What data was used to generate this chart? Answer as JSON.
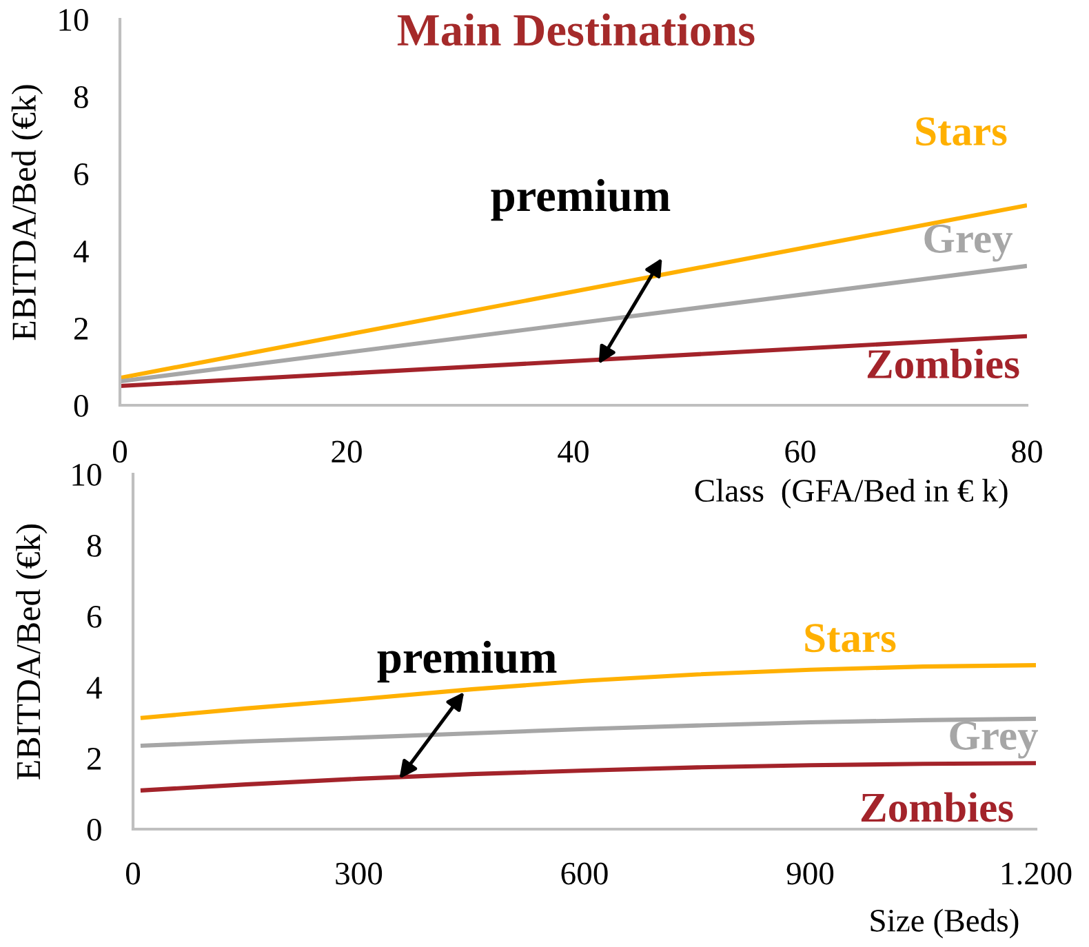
{
  "chart_data": [
    {
      "type": "line",
      "title": "Main Destinations",
      "xlabel": "Class  (GFA/Bed in € k)",
      "ylabel": "EBITDA/Bed (€k)",
      "x": [
        0,
        80
      ],
      "series": [
        {
          "name": "Stars",
          "color": "#ffb000",
          "values": [
            0.71,
            5.18
          ]
        },
        {
          "name": "Grey",
          "color": "#a6a6a6",
          "values": [
            0.62,
            3.61
          ]
        },
        {
          "name": "Zombies",
          "color": "#a3232a",
          "values": [
            0.5,
            1.79
          ]
        }
      ],
      "xlim": [
        0,
        80
      ],
      "ylim": [
        0,
        10
      ],
      "xticks": [
        0,
        20,
        40,
        60,
        80
      ],
      "yticks": [
        0,
        2,
        4,
        6,
        8,
        10
      ],
      "annotations": [
        {
          "text": "premium",
          "x": 46.8,
          "y": 3.32
        }
      ]
    },
    {
      "type": "line",
      "xlabel": "Size (Beds)",
      "ylabel": "EBITDA/Bed (€k)",
      "x": [
        10,
        150,
        300,
        450,
        600,
        750,
        900,
        1050,
        1200
      ],
      "series": [
        {
          "name": "Stars",
          "color": "#ffb000",
          "values": [
            3.13,
            3.4,
            3.66,
            3.94,
            4.18,
            4.36,
            4.49,
            4.58,
            4.62
          ]
        },
        {
          "name": "Grey",
          "color": "#a6a6a6",
          "values": [
            2.35,
            2.47,
            2.58,
            2.7,
            2.82,
            2.92,
            3.01,
            3.07,
            3.11
          ]
        },
        {
          "name": "Zombies",
          "color": "#a3232a",
          "values": [
            1.09,
            1.26,
            1.42,
            1.55,
            1.65,
            1.74,
            1.8,
            1.84,
            1.86
          ]
        }
      ],
      "xlim": [
        0,
        1200
      ],
      "ylim": [
        0,
        10
      ],
      "xticks": [
        0,
        300,
        600,
        900,
        {
          "value": 1200,
          "label": "1.200"
        }
      ],
      "yticks": [
        0,
        2,
        4,
        6,
        8,
        10
      ],
      "annotations": [
        {
          "text": "premium",
          "x": 440,
          "y": 3.92
        }
      ]
    }
  ]
}
